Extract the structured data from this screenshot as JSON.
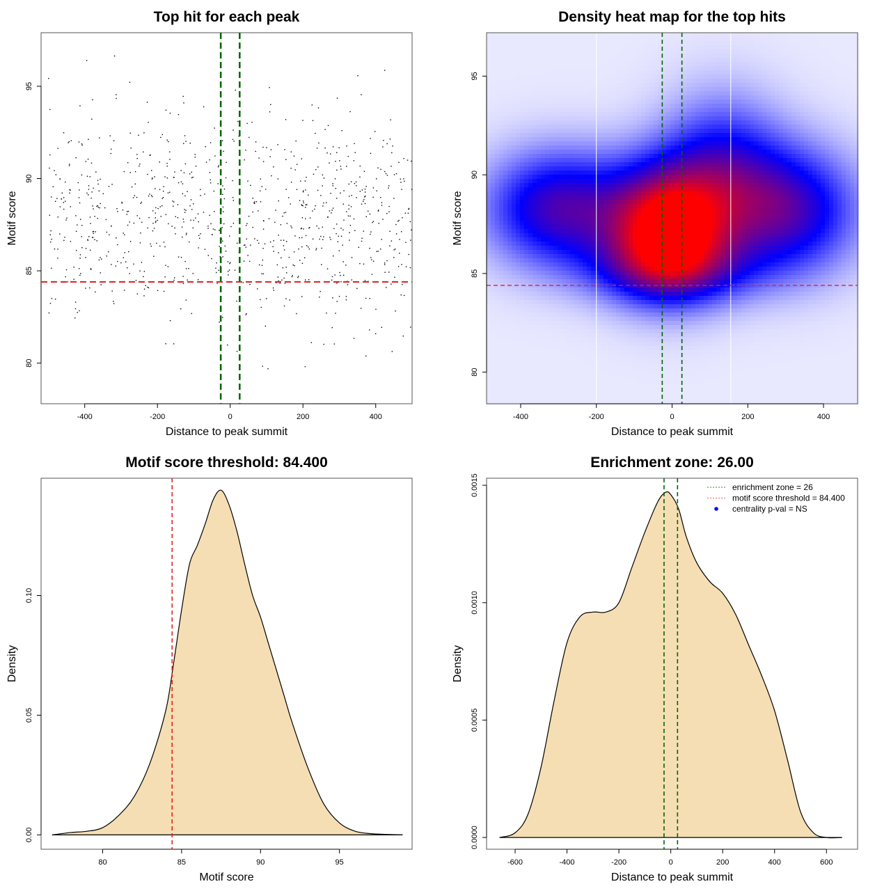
{
  "chart_data": [
    {
      "type": "scatter",
      "title": "Top hit for each peak",
      "xlabel": "Distance to peak summit",
      "ylabel": "Motif score",
      "xlim": [
        -520,
        500
      ],
      "ylim": [
        77.8,
        97.9
      ],
      "xticks": [
        -400,
        -200,
        0,
        200,
        400
      ],
      "yticks": [
        80,
        85,
        90,
        95
      ],
      "enrichment_zone": 26,
      "threshold": 84.4,
      "n_points": 900,
      "point_distribution": {
        "x_mean": 0,
        "x_sd": 280,
        "x_range": [
          -500,
          500
        ],
        "y_mean": 87.8,
        "y_sd": 2.8,
        "y_range": [
          78.5,
          97
        ]
      },
      "colors": {
        "points": "#000000",
        "zone": "#006400",
        "threshold": "#dd2222"
      }
    },
    {
      "type": "heatmap",
      "title": "Density heat map for the top hits",
      "xlabel": "Distance to peak summit",
      "ylabel": "Motif score",
      "xlim": [
        -490,
        490
      ],
      "ylim": [
        78.4,
        97.2
      ],
      "xticks": [
        -400,
        -200,
        0,
        200,
        400
      ],
      "yticks": [
        80,
        85,
        90,
        95
      ],
      "enrichment_zone": 26,
      "threshold": 84.4,
      "white_guides_x": [
        -200,
        155
      ],
      "blobs": [
        {
          "x": -10,
          "y": 87.3,
          "sx": 110,
          "sy": 2.2,
          "w": 1.0
        },
        {
          "x": -300,
          "y": 88.3,
          "sx": 130,
          "sy": 2.0,
          "w": 0.55
        },
        {
          "x": 300,
          "y": 88.2,
          "sx": 130,
          "sy": 2.2,
          "w": 0.55
        },
        {
          "x": 130,
          "y": 90.5,
          "sx": 110,
          "sy": 2.5,
          "w": 0.35
        },
        {
          "x": 0,
          "y": 85.2,
          "sx": 160,
          "sy": 1.2,
          "w": 0.3
        }
      ],
      "colors": {
        "low": "#ffffff",
        "mid": "#0000ff",
        "high": "#ff0000",
        "zone": "#006400",
        "threshold": "#dd2222"
      }
    },
    {
      "type": "area",
      "title": "Motif score threshold: 84.400",
      "xlabel": "Motif score",
      "ylabel": "Density",
      "xlim": [
        76.1,
        99.6
      ],
      "ylim": [
        -0.006,
        0.149
      ],
      "xticks": [
        80,
        85,
        90,
        95
      ],
      "yticks": [
        0.0,
        0.05,
        0.1
      ],
      "ytick_labels": [
        "0.00",
        "0.05",
        "0.10"
      ],
      "threshold": 84.4,
      "x": [
        76.8,
        78,
        79,
        80,
        81,
        82,
        83,
        84,
        84.5,
        85,
        85.5,
        86,
        86.5,
        87,
        87.5,
        88,
        88.5,
        89,
        89.5,
        90,
        90.5,
        91,
        91.5,
        92,
        93,
        94,
        95,
        96,
        97,
        98,
        99
      ],
      "y": [
        0.0,
        0.001,
        0.0015,
        0.003,
        0.008,
        0.016,
        0.03,
        0.052,
        0.072,
        0.094,
        0.113,
        0.121,
        0.13,
        0.14,
        0.144,
        0.138,
        0.127,
        0.113,
        0.1,
        0.091,
        0.08,
        0.069,
        0.058,
        0.047,
        0.028,
        0.013,
        0.005,
        0.0015,
        0.0005,
        0.0002,
        0.0
      ],
      "colors": {
        "fill": "#f5deb3",
        "line": "#000000",
        "threshold": "#dd2222"
      }
    },
    {
      "type": "area",
      "title": "Enrichment zone: 26.00",
      "xlabel": "Distance to peak summit",
      "ylabel": "Density",
      "xlim": [
        -710,
        720
      ],
      "ylim": [
        -5e-05,
        0.00153
      ],
      "xticks": [
        -600,
        -400,
        -200,
        0,
        200,
        400,
        600
      ],
      "yticks": [
        0.0,
        0.0005,
        0.001,
        0.0015
      ],
      "ytick_labels": [
        "0.0000",
        "0.0005",
        "0.0010",
        "0.0015"
      ],
      "enrichment_zone": 26,
      "x": [
        -660,
        -600,
        -550,
        -500,
        -450,
        -400,
        -350,
        -300,
        -250,
        -200,
        -150,
        -100,
        -50,
        -20,
        0,
        30,
        60,
        100,
        150,
        200,
        250,
        300,
        350,
        400,
        450,
        500,
        550,
        600,
        660
      ],
      "y": [
        0.0,
        2e-05,
        0.0001,
        0.0003,
        0.00058,
        0.00083,
        0.00094,
        0.00096,
        0.00096,
        0.001,
        0.00115,
        0.0013,
        0.00143,
        0.00147,
        0.00146,
        0.0014,
        0.00128,
        0.00117,
        0.00109,
        0.00104,
        0.00095,
        0.00082,
        0.00069,
        0.00054,
        0.00033,
        0.00011,
        2e-05,
        0.0,
        0.0
      ],
      "legend": {
        "position": "top-right",
        "entries": [
          {
            "label": "enrichment zone = 26",
            "style": "dotted-line",
            "color": "#228b22"
          },
          {
            "label": "motif score threshold = 84.400",
            "style": "dotted-line",
            "color": "#e06060"
          },
          {
            "label": "centrality p-val = NS",
            "style": "dot",
            "color": "#0000ff"
          }
        ]
      },
      "colors": {
        "fill": "#f5deb3",
        "line": "#000000",
        "zone": "#006400"
      }
    }
  ]
}
